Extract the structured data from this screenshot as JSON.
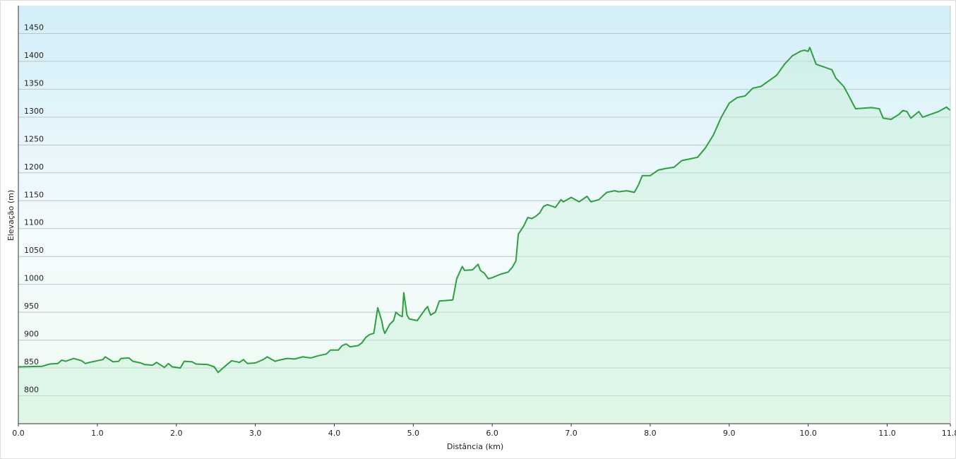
{
  "chart_data": {
    "type": "area-line",
    "x_label": "Distância  (km)",
    "y_label": "Elevação (m)",
    "color": "#2f9e41",
    "fill_color": "#c8f0d6",
    "grid": true,
    "xlim": [
      0,
      11.8
    ],
    "ylim": [
      750,
      1500
    ],
    "xticks": [
      {
        "value": 0,
        "label": "0.0"
      },
      {
        "value": 1,
        "label": "1.0"
      },
      {
        "value": 2,
        "label": "2.0"
      },
      {
        "value": 3,
        "label": "3.0"
      },
      {
        "value": 4,
        "label": "4.0"
      },
      {
        "value": 5,
        "label": "5.0"
      },
      {
        "value": 6,
        "label": "6.0"
      },
      {
        "value": 7,
        "label": "7.0"
      },
      {
        "value": 8,
        "label": "8.0"
      },
      {
        "value": 9,
        "label": "9.0"
      },
      {
        "value": 10,
        "label": "10.0"
      },
      {
        "value": 11,
        "label": "11.0"
      },
      {
        "value": 11.8,
        "label": "11.8"
      }
    ],
    "yticks": [
      800,
      850,
      900,
      950,
      1000,
      1050,
      1100,
      1150,
      1200,
      1250,
      1300,
      1350,
      1400,
      1450
    ],
    "x": [
      0.0,
      0.3,
      0.4,
      0.5,
      0.55,
      0.6,
      0.7,
      0.8,
      0.85,
      0.9,
      1.0,
      1.07,
      1.1,
      1.2,
      1.27,
      1.3,
      1.4,
      1.45,
      1.55,
      1.6,
      1.7,
      1.75,
      1.85,
      1.9,
      1.95,
      2.05,
      2.1,
      2.2,
      2.25,
      2.4,
      2.48,
      2.53,
      2.6,
      2.7,
      2.8,
      2.85,
      2.9,
      3.0,
      3.1,
      3.15,
      3.25,
      3.3,
      3.4,
      3.5,
      3.6,
      3.7,
      3.8,
      3.9,
      3.95,
      4.05,
      4.1,
      4.15,
      4.2,
      4.3,
      4.35,
      4.4,
      4.45,
      4.5,
      4.55,
      4.6,
      4.62,
      4.64,
      4.7,
      4.75,
      4.78,
      4.82,
      4.86,
      4.88,
      4.92,
      4.95,
      5.05,
      5.1,
      5.15,
      5.18,
      5.22,
      5.28,
      5.33,
      5.5,
      5.55,
      5.62,
      5.65,
      5.75,
      5.82,
      5.85,
      5.9,
      5.95,
      6.0,
      6.1,
      6.2,
      6.25,
      6.3,
      6.33,
      6.4,
      6.45,
      6.5,
      6.55,
      6.6,
      6.65,
      6.7,
      6.8,
      6.87,
      6.9,
      7.0,
      7.1,
      7.2,
      7.25,
      7.35,
      7.45,
      7.55,
      7.6,
      7.7,
      7.8,
      7.85,
      7.9,
      8.0,
      8.1,
      8.2,
      8.3,
      8.4,
      8.5,
      8.6,
      8.7,
      8.8,
      8.9,
      9.0,
      9.1,
      9.2,
      9.3,
      9.4,
      9.5,
      9.6,
      9.7,
      9.8,
      9.9,
      9.95,
      10.0,
      10.02,
      10.1,
      10.2,
      10.3,
      10.35,
      10.45,
      10.5,
      10.6,
      10.8,
      10.9,
      10.95,
      11.05,
      11.15,
      11.2,
      11.25,
      11.3,
      11.4,
      11.45,
      11.55,
      11.65,
      11.75,
      11.8
    ],
    "values": [
      852,
      853,
      857,
      858,
      864,
      862,
      867,
      863,
      858,
      860,
      863,
      865,
      870,
      861,
      862,
      867,
      868,
      862,
      859,
      856,
      855,
      860,
      851,
      858,
      852,
      850,
      862,
      861,
      857,
      856,
      852,
      842,
      851,
      863,
      860,
      865,
      858,
      859,
      865,
      870,
      862,
      864,
      867,
      866,
      870,
      868,
      872,
      875,
      882,
      882,
      890,
      893,
      888,
      890,
      895,
      905,
      910,
      912,
      958,
      935,
      920,
      912,
      928,
      935,
      950,
      945,
      942,
      985,
      945,
      938,
      935,
      945,
      955,
      960,
      945,
      950,
      970,
      972,
      1010,
      1032,
      1025,
      1026,
      1036,
      1025,
      1020,
      1010,
      1012,
      1018,
      1022,
      1030,
      1042,
      1090,
      1105,
      1120,
      1118,
      1122,
      1128,
      1140,
      1143,
      1138,
      1152,
      1148,
      1156,
      1148,
      1158,
      1148,
      1152,
      1165,
      1168,
      1166,
      1168,
      1165,
      1178,
      1195,
      1195,
      1205,
      1208,
      1210,
      1222,
      1225,
      1228,
      1245,
      1268,
      1300,
      1325,
      1335,
      1338,
      1352,
      1355,
      1365,
      1375,
      1395,
      1410,
      1418,
      1420,
      1418,
      1425,
      1395,
      1390,
      1385,
      1370,
      1355,
      1342,
      1315,
      1317,
      1315,
      1298,
      1296,
      1305,
      1312,
      1310,
      1298,
      1310,
      1300,
      1305,
      1310,
      1318,
      1312
    ]
  }
}
